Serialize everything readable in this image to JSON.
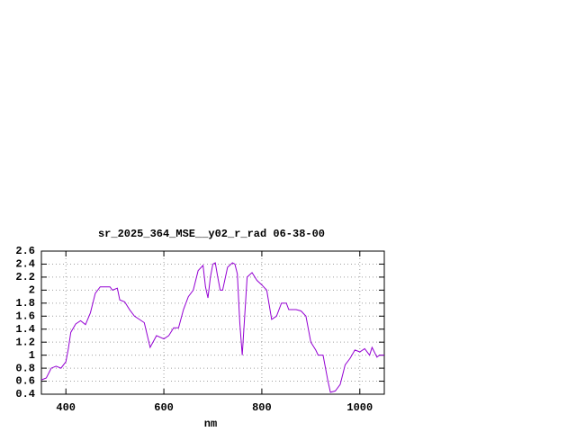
{
  "chart_data": {
    "type": "line",
    "title": "sr_2025_364_MSE__y02_r_rad 06-38-00",
    "x_label": "nm",
    "x": [
      350,
      360,
      370,
      380,
      390,
      400,
      405,
      410,
      420,
      430,
      440,
      450,
      460,
      470,
      480,
      490,
      495,
      505,
      510,
      520,
      530,
      540,
      550,
      560,
      572,
      585,
      600,
      610,
      620,
      630,
      640,
      650,
      660,
      670,
      680,
      685,
      690,
      695,
      700,
      705,
      710,
      715,
      720,
      730,
      740,
      745,
      750,
      755,
      760,
      765,
      770,
      780,
      790,
      800,
      810,
      820,
      830,
      840,
      850,
      855,
      870,
      880,
      890,
      900,
      910,
      915,
      925,
      935,
      940,
      950,
      960,
      970,
      980,
      990,
      1000,
      1010,
      1020,
      1025,
      1035,
      1040,
      1050
    ],
    "series": [
      {
        "name": null,
        "color": "#9400d3",
        "values": [
          0.62,
          0.65,
          0.8,
          0.83,
          0.8,
          0.9,
          1.1,
          1.35,
          1.48,
          1.53,
          1.47,
          1.65,
          1.95,
          2.05,
          2.05,
          2.05,
          2.0,
          2.03,
          1.85,
          1.82,
          1.7,
          1.6,
          1.55,
          1.5,
          1.12,
          1.3,
          1.25,
          1.3,
          1.42,
          1.42,
          1.7,
          1.9,
          2.0,
          2.3,
          2.38,
          2.05,
          1.88,
          2.2,
          2.4,
          2.42,
          2.2,
          2.0,
          2.0,
          2.35,
          2.42,
          2.4,
          2.25,
          1.5,
          1.0,
          1.6,
          2.2,
          2.27,
          2.15,
          2.08,
          2.0,
          1.55,
          1.6,
          1.8,
          1.8,
          1.7,
          1.7,
          1.68,
          1.6,
          1.2,
          1.08,
          1.0,
          1.0,
          0.6,
          0.43,
          0.45,
          0.55,
          0.85,
          0.95,
          1.08,
          1.05,
          1.1,
          1.0,
          1.12,
          0.97,
          1.0,
          1.0
        ]
      }
    ],
    "xlim": [
      350,
      1050
    ],
    "ylim": [
      0.4,
      2.6
    ],
    "xticks": [
      400,
      600,
      800,
      1000
    ],
    "yticks": [
      0.4,
      0.6,
      0.8,
      1,
      1.2,
      1.4,
      1.6,
      1.8,
      2,
      2.2,
      2.4,
      2.6
    ],
    "grid": true
  }
}
